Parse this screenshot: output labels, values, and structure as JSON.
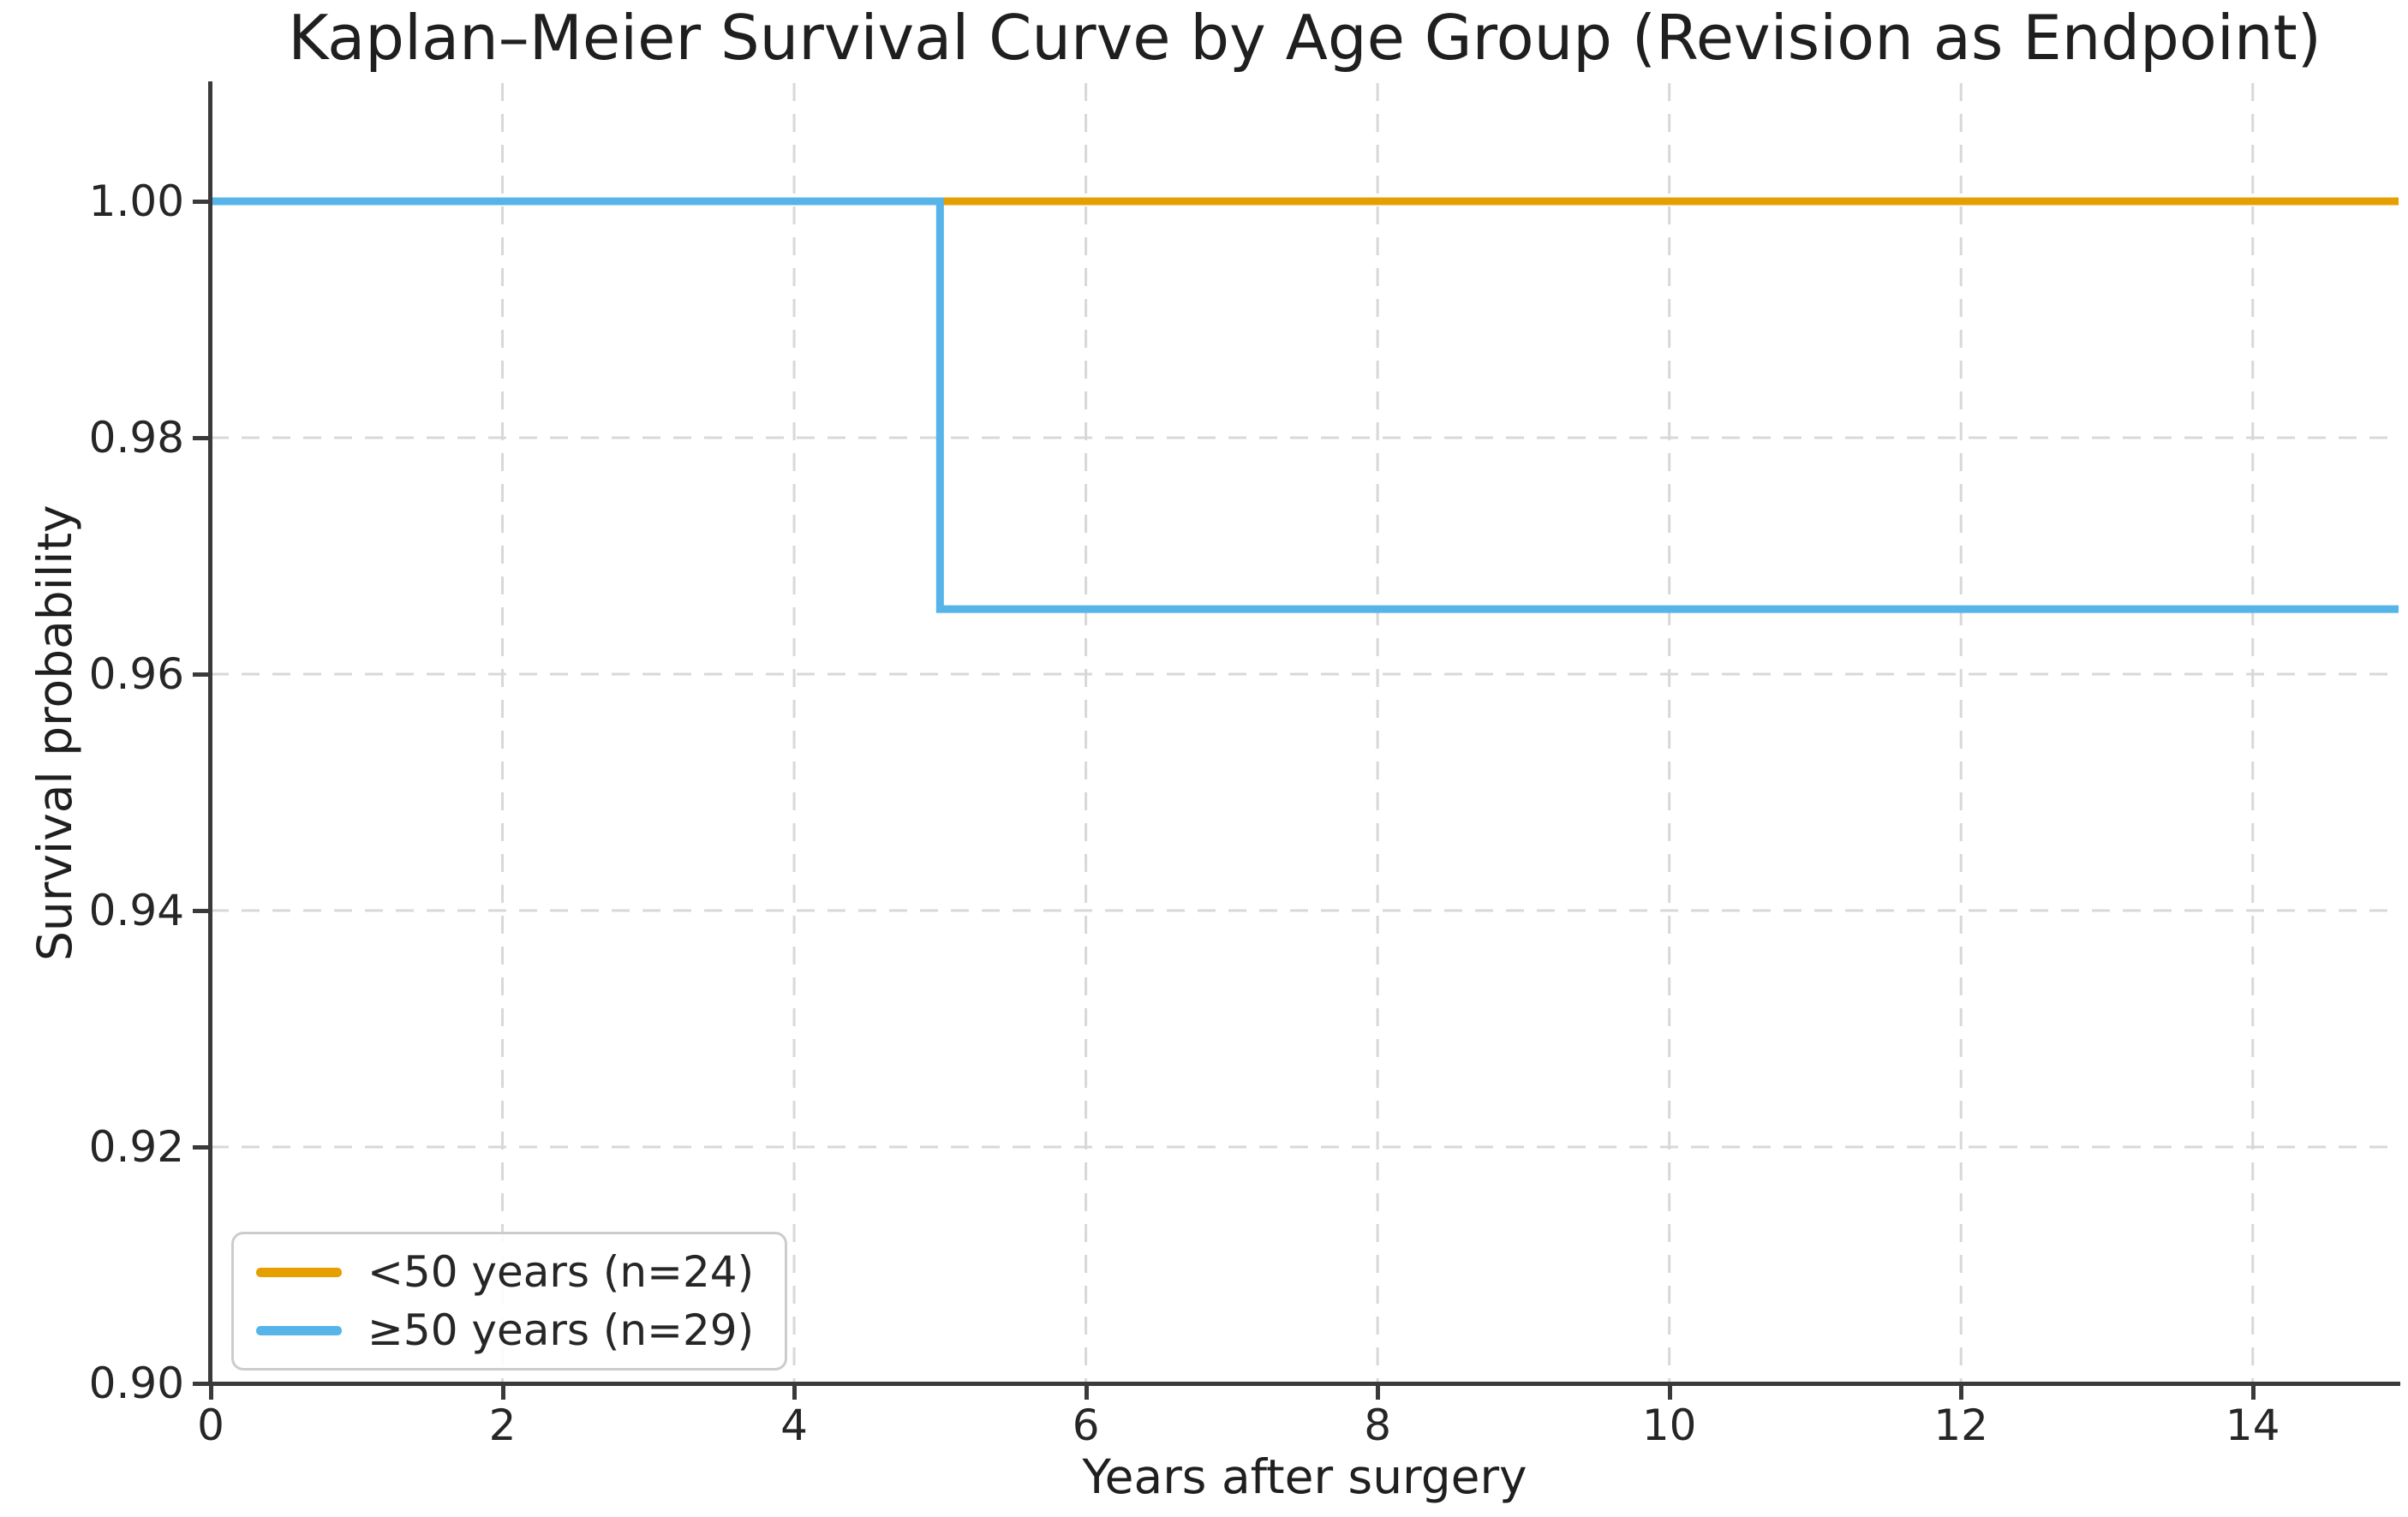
{
  "chart_data": {
    "type": "line",
    "subtype": "kaplan-meier-step",
    "title": "Kaplan–Meier Survival Curve by Age Group (Revision as Endpoint)",
    "xlabel": "Years after surgery",
    "ylabel": "Survival probability",
    "xlim": [
      0,
      15
    ],
    "ylim": [
      0.9,
      1.01
    ],
    "x_ticks": [
      {
        "value": 0,
        "label": "0"
      },
      {
        "value": 2,
        "label": "2"
      },
      {
        "value": 4,
        "label": "4"
      },
      {
        "value": 6,
        "label": "6"
      },
      {
        "value": 8,
        "label": "8"
      },
      {
        "value": 10,
        "label": "10"
      },
      {
        "value": 12,
        "label": "12"
      },
      {
        "value": 14,
        "label": "14"
      }
    ],
    "y_ticks": [
      {
        "value": 1.0,
        "label": "1.00"
      },
      {
        "value": 0.98,
        "label": "0.98"
      },
      {
        "value": 0.96,
        "label": "0.96"
      },
      {
        "value": 0.94,
        "label": "0.94"
      },
      {
        "value": 0.92,
        "label": "0.92"
      },
      {
        "value": 0.9,
        "label": "0.90"
      }
    ],
    "grid": {
      "visible": true,
      "style": "dashed",
      "color": "#d8d8d8"
    },
    "axis_style": {
      "spine_color": "#3a3a3a",
      "tick_color": "#3a3a3a",
      "text_color": "#262626"
    },
    "legend": {
      "position": "lower left",
      "border_color": "#cccccc",
      "background": "#ffffff"
    },
    "series": [
      {
        "name": "<50 years (n=24)",
        "color": "#E69F00",
        "step": "post",
        "points": [
          [
            0,
            1.0
          ],
          [
            15,
            1.0
          ]
        ]
      },
      {
        "name": "≥50 years (n=29)",
        "color": "#56B4E9",
        "step": "post",
        "points": [
          [
            0,
            1.0
          ],
          [
            5,
            1.0
          ],
          [
            5,
            0.9655
          ],
          [
            15,
            0.9655
          ]
        ]
      }
    ]
  }
}
